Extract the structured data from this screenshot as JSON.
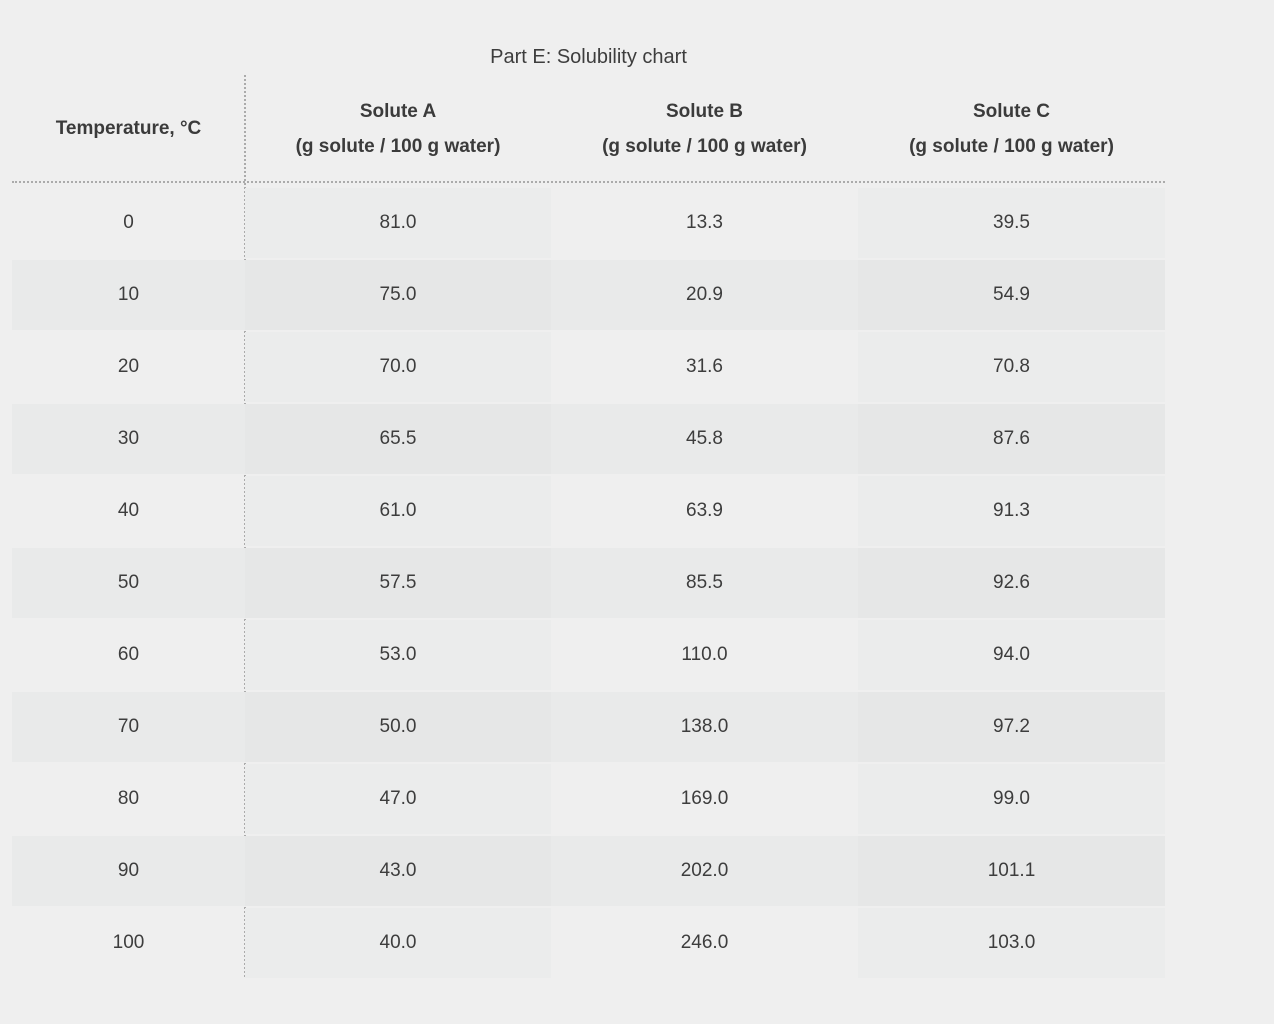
{
  "title": "Part E: Solubility chart",
  "table": {
    "columns": [
      {
        "label": "Temperature, °C",
        "sublabel": ""
      },
      {
        "label": "Solute A",
        "sublabel": "(g solute / 100 g water)"
      },
      {
        "label": "Solute B",
        "sublabel": "(g solute / 100 g water)"
      },
      {
        "label": "Solute C",
        "sublabel": "(g solute / 100 g water)"
      }
    ],
    "rows": [
      [
        "0",
        "81.0",
        "13.3",
        "39.5"
      ],
      [
        "10",
        "75.0",
        "20.9",
        "54.9"
      ],
      [
        "20",
        "70.0",
        "31.6",
        "70.8"
      ],
      [
        "30",
        "65.5",
        "45.8",
        "87.6"
      ],
      [
        "40",
        "61.0",
        "63.9",
        "91.3"
      ],
      [
        "50",
        "57.5",
        "85.5",
        "92.6"
      ],
      [
        "60",
        "53.0",
        "110.0",
        "94.0"
      ],
      [
        "70",
        "50.0",
        "138.0",
        "97.2"
      ],
      [
        "80",
        "47.0",
        "169.0",
        "99.0"
      ],
      [
        "90",
        "43.0",
        "202.0",
        "101.1"
      ],
      [
        "100",
        "40.0",
        "246.0",
        "103.0"
      ]
    ]
  },
  "chart_data": {
    "type": "table",
    "title": "Part E: Solubility chart",
    "x_label": "Temperature, °C",
    "categories": [
      0,
      10,
      20,
      30,
      40,
      50,
      60,
      70,
      80,
      90,
      100
    ],
    "series": [
      {
        "name": "Solute A (g solute / 100 g water)",
        "values": [
          81.0,
          75.0,
          70.0,
          65.5,
          61.0,
          57.5,
          53.0,
          50.0,
          47.0,
          43.0,
          40.0
        ]
      },
      {
        "name": "Solute B (g solute / 100 g water)",
        "values": [
          13.3,
          20.9,
          31.6,
          45.8,
          63.9,
          85.5,
          110.0,
          138.0,
          169.0,
          202.0,
          246.0
        ]
      },
      {
        "name": "Solute C (g solute / 100 g water)",
        "values": [
          39.5,
          54.9,
          70.8,
          87.6,
          91.3,
          92.6,
          94.0,
          97.2,
          99.0,
          101.1,
          103.0
        ]
      }
    ]
  },
  "colors": {
    "page_background": "#efefef",
    "text": "#3d3d3d",
    "divider_dotted": "#ababab",
    "row_dark_band": "#e9eaea",
    "column_shade_light_row": "#ebecec",
    "column_shade_dark_row": "#e6e7e7"
  }
}
